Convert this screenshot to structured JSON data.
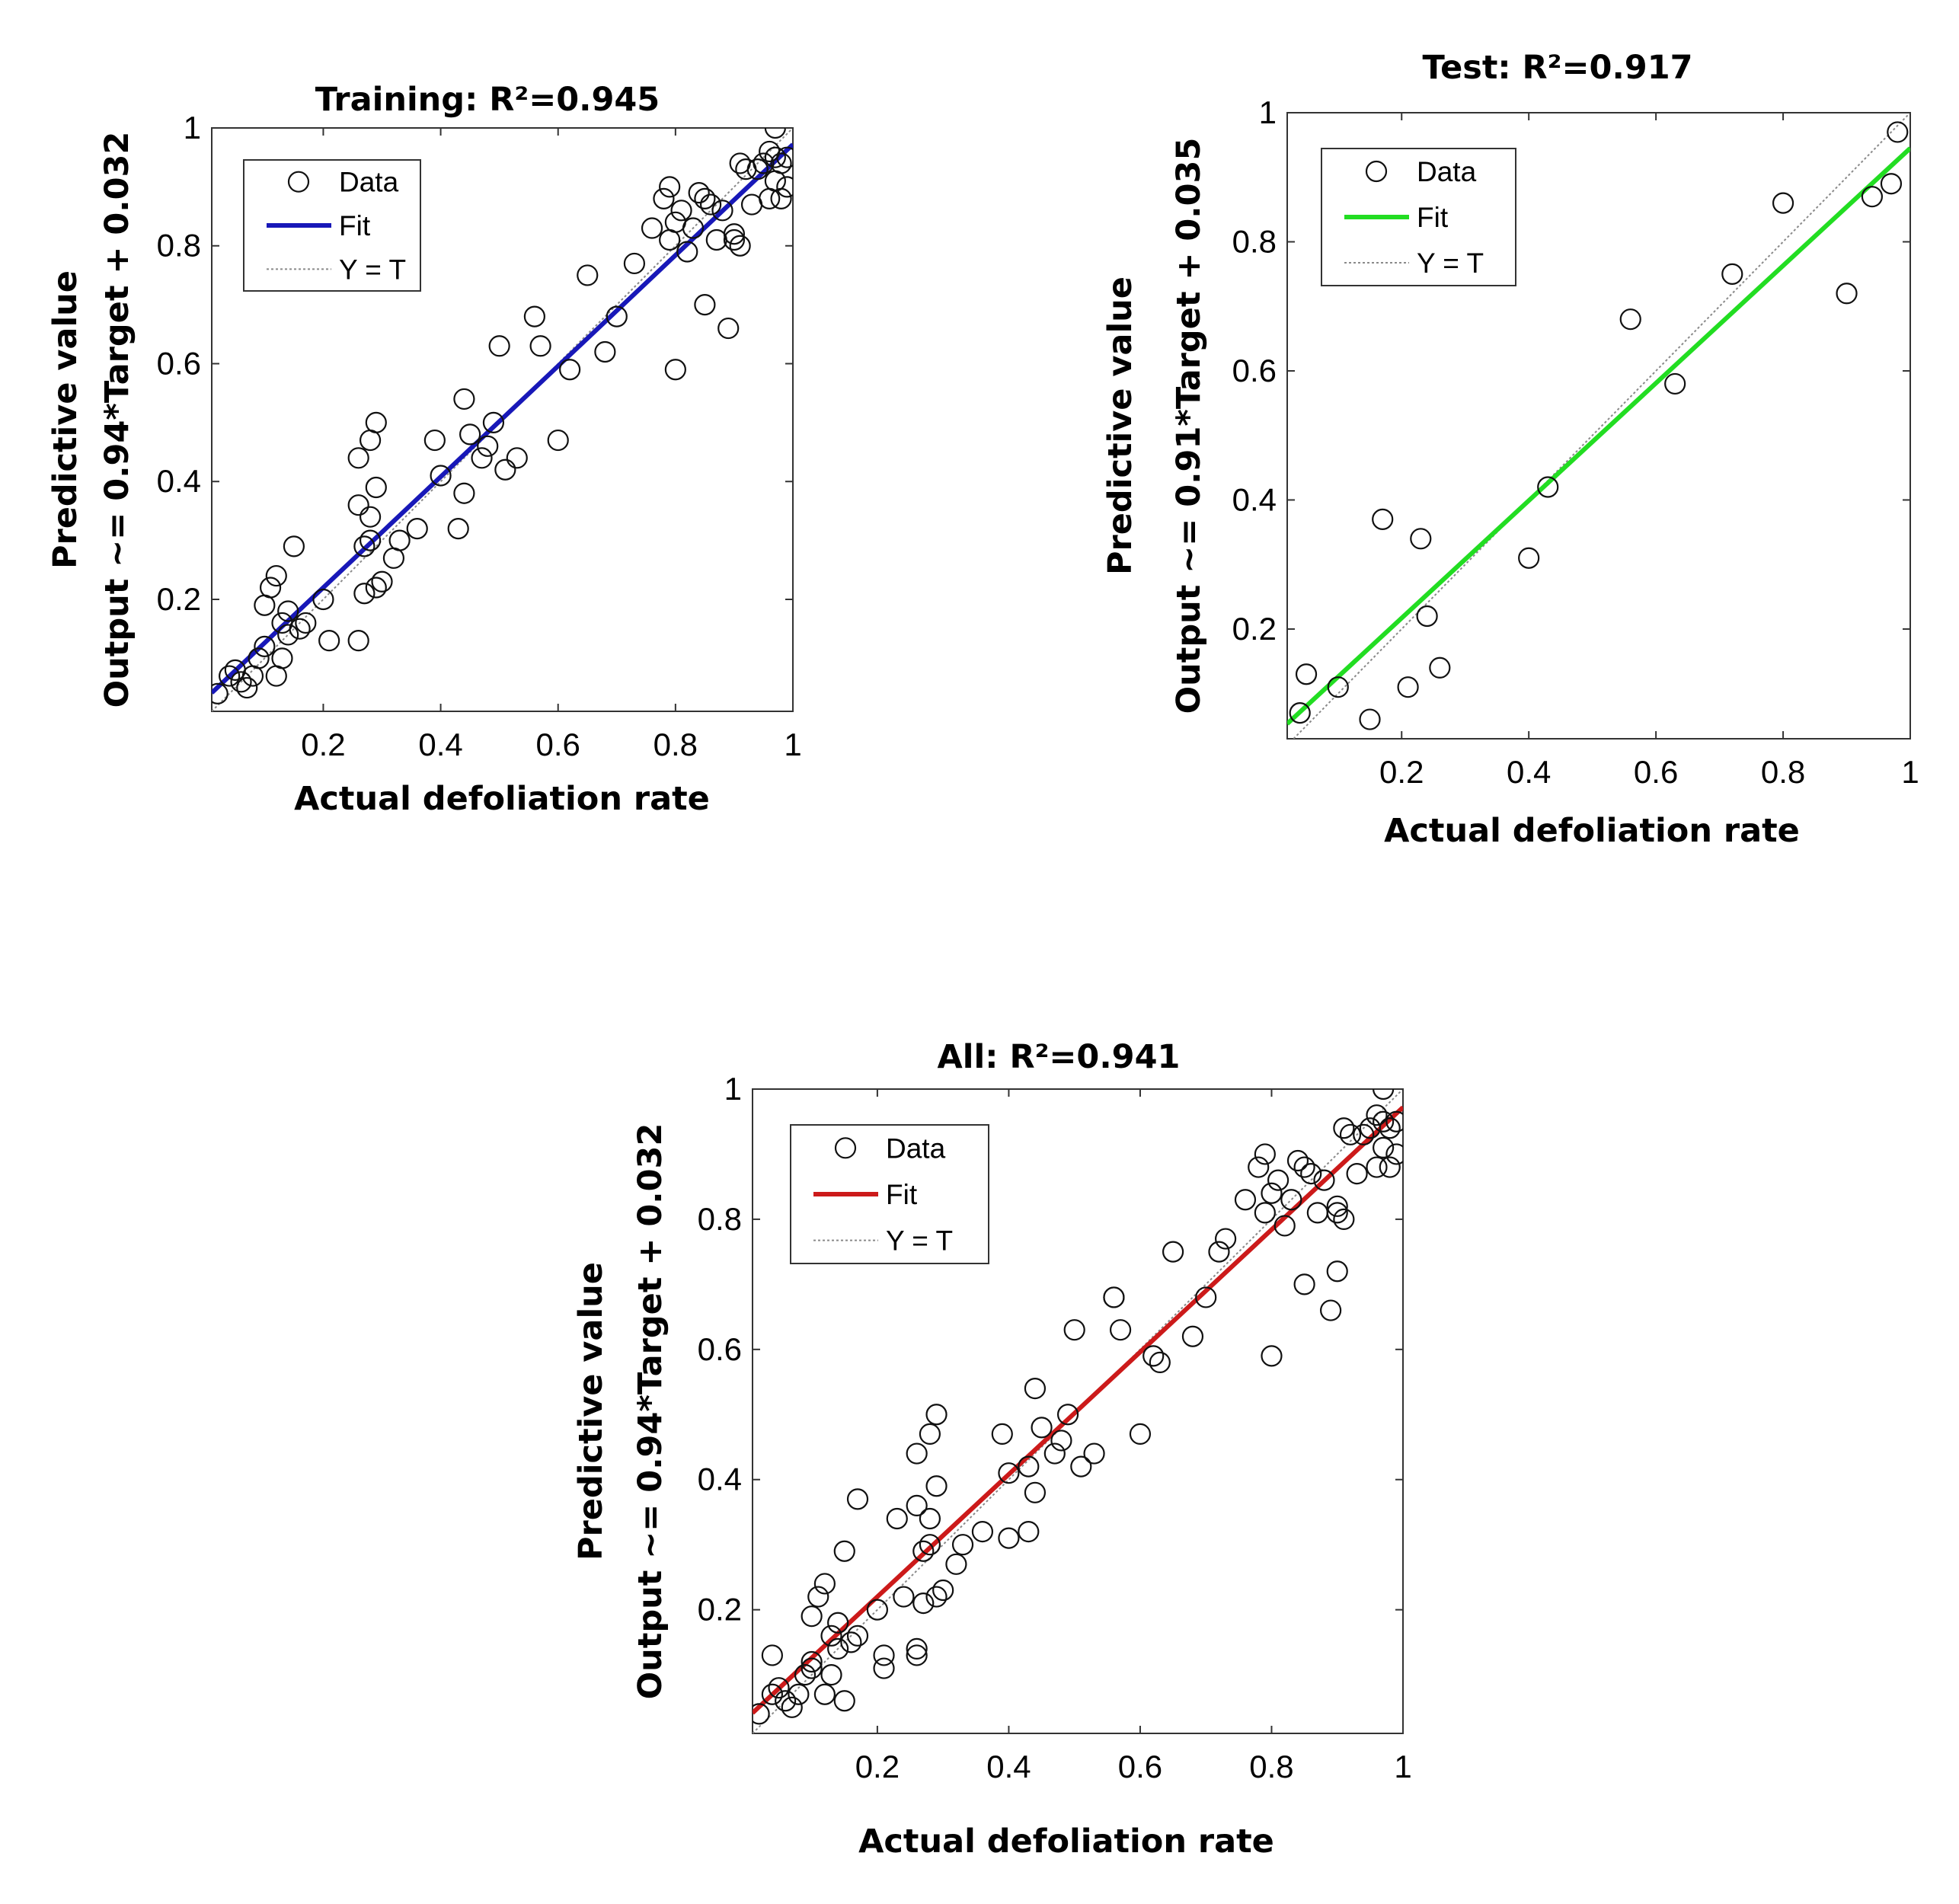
{
  "chart_data": [
    {
      "id": "training",
      "type": "scatter",
      "title": "Training: R²=0.945",
      "xlabel": "Actual defoliation rate",
      "ylabel_line1": "Predictive value",
      "ylabel_line2": "Output ~= 0.94*Target + 0.032",
      "xlim": [
        0.01,
        1.0
      ],
      "ylim": [
        0.01,
        1.0
      ],
      "xticks": [
        "0.2",
        "0.4",
        "0.6",
        "0.8",
        "1"
      ],
      "yticks": [
        "0.2",
        "0.4",
        "0.6",
        "0.8",
        "1"
      ],
      "grid": false,
      "legend": {
        "position": "top-left",
        "entries": [
          "Data",
          "Fit",
          "Y = T"
        ]
      },
      "fit": {
        "slope": 0.94,
        "intercept": 0.032,
        "color": "#1818b8"
      },
      "points": [
        [
          0.02,
          0.04
        ],
        [
          0.04,
          0.07
        ],
        [
          0.05,
          0.08
        ],
        [
          0.06,
          0.06
        ],
        [
          0.07,
          0.05
        ],
        [
          0.08,
          0.07
        ],
        [
          0.09,
          0.1
        ],
        [
          0.1,
          0.12
        ],
        [
          0.1,
          0.19
        ],
        [
          0.11,
          0.22
        ],
        [
          0.12,
          0.24
        ],
        [
          0.12,
          0.07
        ],
        [
          0.13,
          0.1
        ],
        [
          0.13,
          0.16
        ],
        [
          0.14,
          0.18
        ],
        [
          0.14,
          0.14
        ],
        [
          0.15,
          0.29
        ],
        [
          0.16,
          0.15
        ],
        [
          0.17,
          0.16
        ],
        [
          0.2,
          0.2
        ],
        [
          0.21,
          0.13
        ],
        [
          0.26,
          0.44
        ],
        [
          0.26,
          0.13
        ],
        [
          0.26,
          0.36
        ],
        [
          0.27,
          0.21
        ],
        [
          0.27,
          0.29
        ],
        [
          0.28,
          0.34
        ],
        [
          0.28,
          0.3
        ],
        [
          0.28,
          0.47
        ],
        [
          0.29,
          0.5
        ],
        [
          0.29,
          0.22
        ],
        [
          0.29,
          0.39
        ],
        [
          0.3,
          0.23
        ],
        [
          0.32,
          0.27
        ],
        [
          0.33,
          0.3
        ],
        [
          0.36,
          0.32
        ],
        [
          0.39,
          0.47
        ],
        [
          0.4,
          0.41
        ],
        [
          0.43,
          0.32
        ],
        [
          0.44,
          0.54
        ],
        [
          0.44,
          0.38
        ],
        [
          0.45,
          0.48
        ],
        [
          0.47,
          0.44
        ],
        [
          0.48,
          0.46
        ],
        [
          0.49,
          0.5
        ],
        [
          0.5,
          0.63
        ],
        [
          0.51,
          0.42
        ],
        [
          0.53,
          0.44
        ],
        [
          0.56,
          0.68
        ],
        [
          0.57,
          0.63
        ],
        [
          0.6,
          0.47
        ],
        [
          0.62,
          0.59
        ],
        [
          0.65,
          0.75
        ],
        [
          0.68,
          0.62
        ],
        [
          0.7,
          0.68
        ],
        [
          0.73,
          0.77
        ],
        [
          0.76,
          0.83
        ],
        [
          0.78,
          0.88
        ],
        [
          0.79,
          0.9
        ],
        [
          0.79,
          0.81
        ],
        [
          0.8,
          0.59
        ],
        [
          0.8,
          0.84
        ],
        [
          0.81,
          0.86
        ],
        [
          0.82,
          0.79
        ],
        [
          0.83,
          0.83
        ],
        [
          0.84,
          0.89
        ],
        [
          0.85,
          0.7
        ],
        [
          0.85,
          0.88
        ],
        [
          0.86,
          0.87
        ],
        [
          0.87,
          0.81
        ],
        [
          0.88,
          0.86
        ],
        [
          0.89,
          0.66
        ],
        [
          0.9,
          0.82
        ],
        [
          0.9,
          0.81
        ],
        [
          0.91,
          0.94
        ],
        [
          0.91,
          0.8
        ],
        [
          0.92,
          0.93
        ],
        [
          0.93,
          0.87
        ],
        [
          0.94,
          0.93
        ],
        [
          0.95,
          0.94
        ],
        [
          0.96,
          0.96
        ],
        [
          0.96,
          0.88
        ],
        [
          0.97,
          0.95
        ],
        [
          0.97,
          0.91
        ],
        [
          0.97,
          1.0
        ],
        [
          0.98,
          0.88
        ],
        [
          0.98,
          0.94
        ],
        [
          0.99,
          0.9
        ],
        [
          0.99,
          0.95
        ]
      ]
    },
    {
      "id": "test",
      "type": "scatter",
      "title": "Test: R²=0.917",
      "xlabel": "Actual defoliation rate",
      "ylabel_line1": "Predictive value",
      "ylabel_line2": "Output ~= 0.91*Target + 0.035",
      "xlim": [
        0.02,
        1.0
      ],
      "ylim": [
        0.03,
        1.0
      ],
      "xticks": [
        "0.2",
        "0.4",
        "0.6",
        "0.8",
        "1"
      ],
      "yticks": [
        "0.2",
        "0.4",
        "0.6",
        "0.8",
        "1"
      ],
      "grid": false,
      "legend": {
        "position": "top-left",
        "entries": [
          "Data",
          "Fit",
          "Y = T"
        ]
      },
      "fit": {
        "slope": 0.91,
        "intercept": 0.035,
        "color": "#22dd22"
      },
      "points": [
        [
          0.04,
          0.07
        ],
        [
          0.05,
          0.13
        ],
        [
          0.1,
          0.11
        ],
        [
          0.15,
          0.06
        ],
        [
          0.17,
          0.37
        ],
        [
          0.21,
          0.11
        ],
        [
          0.23,
          0.34
        ],
        [
          0.24,
          0.22
        ],
        [
          0.26,
          0.14
        ],
        [
          0.4,
          0.31
        ],
        [
          0.43,
          0.42
        ],
        [
          0.56,
          0.68
        ],
        [
          0.63,
          0.58
        ],
        [
          0.72,
          0.75
        ],
        [
          0.8,
          0.86
        ],
        [
          0.9,
          0.72
        ],
        [
          0.94,
          0.87
        ],
        [
          0.97,
          0.89
        ],
        [
          0.98,
          0.97
        ]
      ]
    },
    {
      "id": "all",
      "type": "scatter",
      "title": "All: R²=0.941",
      "xlabel": "Actual defoliation rate",
      "ylabel_line1": "Predictive value",
      "ylabel_line2": "Output ~= 0.94*Target + 0.032",
      "xlim": [
        0.01,
        1.0
      ],
      "ylim": [
        0.01,
        1.0
      ],
      "xticks": [
        "0.2",
        "0.4",
        "0.6",
        "0.8",
        "1"
      ],
      "yticks": [
        "0.2",
        "0.4",
        "0.6",
        "0.8",
        "1"
      ],
      "grid": false,
      "legend": {
        "position": "top-left",
        "entries": [
          "Data",
          "Fit",
          "Y = T"
        ]
      },
      "fit": {
        "slope": 0.94,
        "intercept": 0.032,
        "color": "#cc1a1a"
      },
      "points": [
        [
          0.02,
          0.04
        ],
        [
          0.04,
          0.07
        ],
        [
          0.05,
          0.08
        ],
        [
          0.06,
          0.06
        ],
        [
          0.07,
          0.05
        ],
        [
          0.08,
          0.07
        ],
        [
          0.09,
          0.1
        ],
        [
          0.1,
          0.12
        ],
        [
          0.1,
          0.19
        ],
        [
          0.11,
          0.22
        ],
        [
          0.12,
          0.24
        ],
        [
          0.12,
          0.07
        ],
        [
          0.13,
          0.1
        ],
        [
          0.13,
          0.16
        ],
        [
          0.14,
          0.18
        ],
        [
          0.14,
          0.14
        ],
        [
          0.15,
          0.29
        ],
        [
          0.16,
          0.15
        ],
        [
          0.17,
          0.16
        ],
        [
          0.2,
          0.2
        ],
        [
          0.21,
          0.13
        ],
        [
          0.26,
          0.44
        ],
        [
          0.26,
          0.13
        ],
        [
          0.26,
          0.36
        ],
        [
          0.27,
          0.21
        ],
        [
          0.27,
          0.29
        ],
        [
          0.28,
          0.34
        ],
        [
          0.28,
          0.3
        ],
        [
          0.28,
          0.47
        ],
        [
          0.29,
          0.5
        ],
        [
          0.29,
          0.22
        ],
        [
          0.29,
          0.39
        ],
        [
          0.3,
          0.23
        ],
        [
          0.32,
          0.27
        ],
        [
          0.33,
          0.3
        ],
        [
          0.36,
          0.32
        ],
        [
          0.39,
          0.47
        ],
        [
          0.4,
          0.41
        ],
        [
          0.43,
          0.32
        ],
        [
          0.44,
          0.54
        ],
        [
          0.44,
          0.38
        ],
        [
          0.45,
          0.48
        ],
        [
          0.47,
          0.44
        ],
        [
          0.48,
          0.46
        ],
        [
          0.49,
          0.5
        ],
        [
          0.5,
          0.63
        ],
        [
          0.51,
          0.42
        ],
        [
          0.53,
          0.44
        ],
        [
          0.56,
          0.68
        ],
        [
          0.57,
          0.63
        ],
        [
          0.6,
          0.47
        ],
        [
          0.62,
          0.59
        ],
        [
          0.65,
          0.75
        ],
        [
          0.68,
          0.62
        ],
        [
          0.7,
          0.68
        ],
        [
          0.73,
          0.77
        ],
        [
          0.76,
          0.83
        ],
        [
          0.78,
          0.88
        ],
        [
          0.79,
          0.9
        ],
        [
          0.79,
          0.81
        ],
        [
          0.8,
          0.59
        ],
        [
          0.8,
          0.84
        ],
        [
          0.81,
          0.86
        ],
        [
          0.82,
          0.79
        ],
        [
          0.83,
          0.83
        ],
        [
          0.84,
          0.89
        ],
        [
          0.85,
          0.7
        ],
        [
          0.85,
          0.88
        ],
        [
          0.86,
          0.87
        ],
        [
          0.87,
          0.81
        ],
        [
          0.88,
          0.86
        ],
        [
          0.89,
          0.66
        ],
        [
          0.9,
          0.82
        ],
        [
          0.9,
          0.81
        ],
        [
          0.91,
          0.94
        ],
        [
          0.91,
          0.8
        ],
        [
          0.92,
          0.93
        ],
        [
          0.93,
          0.87
        ],
        [
          0.94,
          0.93
        ],
        [
          0.95,
          0.94
        ],
        [
          0.96,
          0.96
        ],
        [
          0.96,
          0.88
        ],
        [
          0.97,
          0.95
        ],
        [
          0.97,
          0.91
        ],
        [
          0.97,
          1.0
        ],
        [
          0.98,
          0.88
        ],
        [
          0.98,
          0.94
        ],
        [
          0.99,
          0.9
        ],
        [
          0.99,
          0.95
        ],
        [
          0.04,
          0.13
        ],
        [
          0.1,
          0.11
        ],
        [
          0.15,
          0.06
        ],
        [
          0.17,
          0.37
        ],
        [
          0.21,
          0.11
        ],
        [
          0.23,
          0.34
        ],
        [
          0.24,
          0.22
        ],
        [
          0.26,
          0.14
        ],
        [
          0.4,
          0.31
        ],
        [
          0.43,
          0.42
        ],
        [
          0.56,
          0.68
        ],
        [
          0.63,
          0.58
        ],
        [
          0.72,
          0.75
        ],
        [
          0.9,
          0.72
        ]
      ]
    }
  ]
}
